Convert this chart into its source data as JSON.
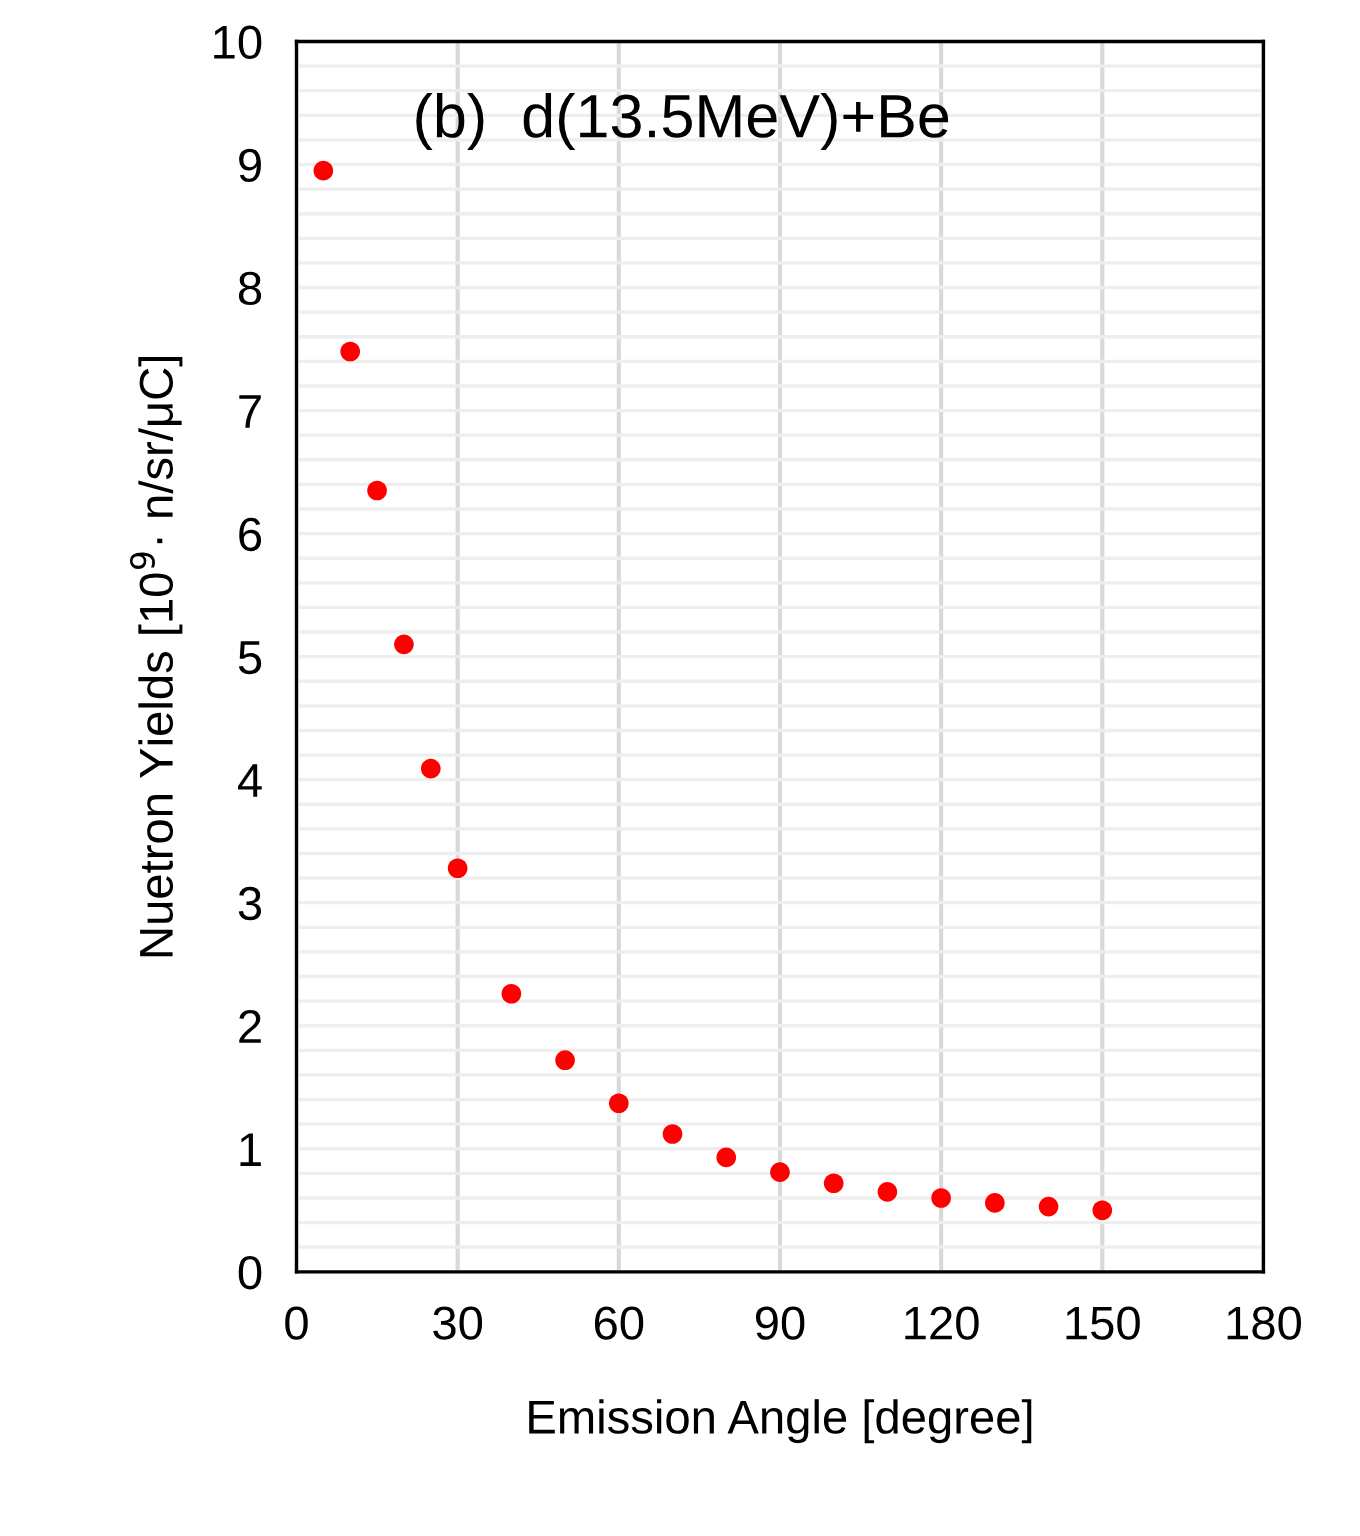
{
  "chart_data": {
    "type": "scatter",
    "xlabel": "Emission Angle [degree]",
    "ylabel": "Nuetron Yields [10$^{9}$· n/sr/μC]",
    "annotations": [
      "(b)  d(13.5MeV)+Be"
    ],
    "x": [
      5,
      10,
      15,
      20,
      25,
      30,
      40,
      50,
      60,
      70,
      80,
      90,
      100,
      110,
      120,
      130,
      140,
      150
    ],
    "series": [
      {
        "color": "#ff0000",
        "values": [
          8.95,
          7.48,
          6.35,
          5.1,
          4.09,
          3.28,
          2.26,
          1.72,
          1.37,
          1.12,
          0.93,
          0.81,
          0.72,
          0.65,
          0.6,
          0.56,
          0.53,
          0.5
        ]
      }
    ],
    "xlim": [
      0,
      180
    ],
    "xticks": [
      0,
      30,
      60,
      90,
      120,
      150,
      180
    ],
    "ylim": [
      0,
      10
    ],
    "yticks": [
      0,
      {
        "value": 0.2,
        "label": null
      },
      {
        "value": 0.4,
        "label": null
      },
      {
        "value": 0.6,
        "label": null
      },
      {
        "value": 0.8,
        "label": null
      },
      1,
      {
        "value": 1.2,
        "label": null
      },
      {
        "value": 1.4,
        "label": null
      },
      {
        "value": 1.6,
        "label": null
      },
      {
        "value": 1.8,
        "label": null
      },
      2,
      {
        "value": 2.2,
        "label": null
      },
      {
        "value": 2.4,
        "label": null
      },
      {
        "value": 2.6,
        "label": null
      },
      {
        "value": 2.8,
        "label": null
      },
      3,
      {
        "value": 3.2,
        "label": null
      },
      {
        "value": 3.4,
        "label": null
      },
      {
        "value": 3.6,
        "label": null
      },
      {
        "value": 3.8,
        "label": null
      },
      4,
      {
        "value": 4.2,
        "label": null
      },
      {
        "value": 4.4,
        "label": null
      },
      {
        "value": 4.6,
        "label": null
      },
      {
        "value": 4.8,
        "label": null
      },
      5,
      {
        "value": 5.2,
        "label": null
      },
      {
        "value": 5.4,
        "label": null
      },
      {
        "value": 5.6,
        "label": null
      },
      {
        "value": 5.8,
        "label": null
      },
      6,
      {
        "value": 6.2,
        "label": null
      },
      {
        "value": 6.4,
        "label": null
      },
      {
        "value": 6.6,
        "label": null
      },
      {
        "value": 6.8,
        "label": null
      },
      7,
      {
        "value": 7.2,
        "label": null
      },
      {
        "value": 7.4,
        "label": null
      },
      {
        "value": 7.6,
        "label": null
      },
      {
        "value": 7.8,
        "label": null
      },
      8,
      {
        "value": 8.2,
        "label": null
      },
      {
        "value": 8.4,
        "label": null
      },
      {
        "value": 8.6,
        "label": null
      },
      {
        "value": 8.8,
        "label": null
      },
      9,
      {
        "value": 9.2,
        "label": null
      },
      {
        "value": 9.4,
        "label": null
      },
      {
        "value": 9.6,
        "label": null
      },
      {
        "value": 9.8,
        "label": null
      },
      10
    ],
    "grid": true,
    "marker": "circle"
  }
}
